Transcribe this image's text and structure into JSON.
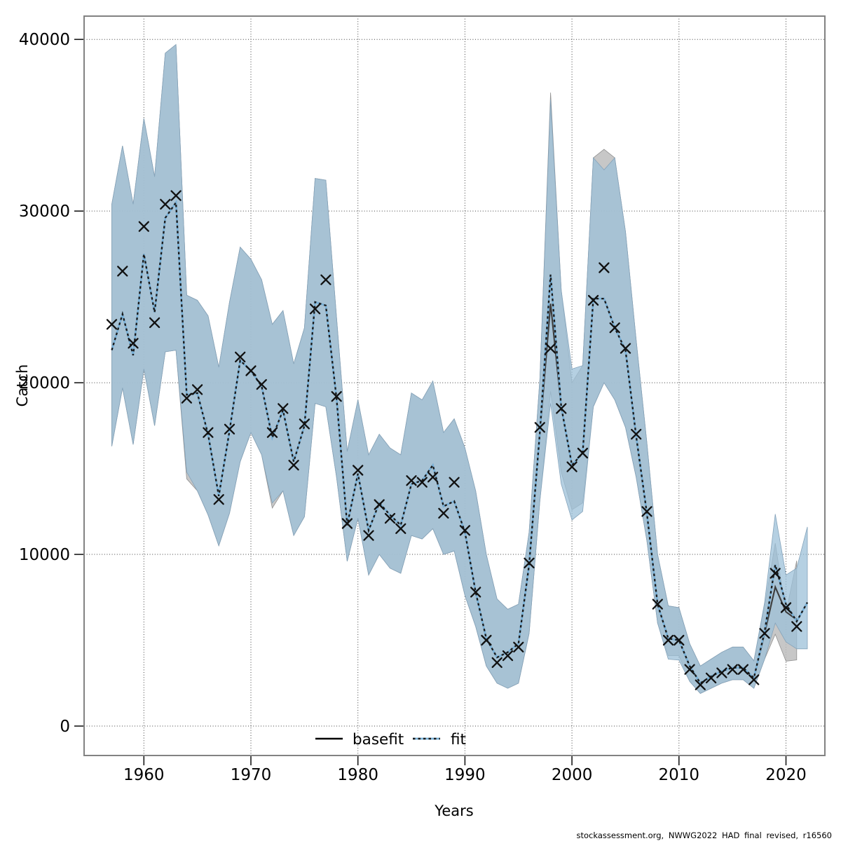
{
  "chart_data": {
    "type": "line",
    "title": "",
    "xlabel": "Years",
    "ylabel": "Catch",
    "caption": "stockassessment.org, NWWG2022 HAD final revised, r16560",
    "grid": true,
    "legend": {
      "position": "bottom-center-inside",
      "items": [
        {
          "label": "basefit",
          "style": "solid",
          "color": "#000000"
        },
        {
          "label": "fit",
          "style": "dotted",
          "color": "#79b1d8"
        }
      ]
    },
    "xlim": [
      1954.4,
      2023.6
    ],
    "ylim": [
      -1700,
      41400
    ],
    "x_ticks": [
      1960,
      1970,
      1980,
      1990,
      2000,
      2010,
      2020
    ],
    "x_tick_labels": [
      "1960",
      "1970",
      "1980",
      "1990",
      "2000",
      "2010",
      "2020"
    ],
    "y_ticks": [
      0,
      10000,
      20000,
      30000,
      40000
    ],
    "y_tick_labels": [
      "0",
      "10000",
      "20000",
      "30000",
      "40000"
    ],
    "years": [
      1957,
      1958,
      1959,
      1960,
      1961,
      1962,
      1963,
      1964,
      1965,
      1966,
      1967,
      1968,
      1969,
      1970,
      1971,
      1972,
      1973,
      1974,
      1975,
      1976,
      1977,
      1978,
      1979,
      1980,
      1981,
      1982,
      1983,
      1984,
      1985,
      1986,
      1987,
      1988,
      1989,
      1990,
      1991,
      1992,
      1993,
      1994,
      1995,
      1996,
      1997,
      1998,
      1999,
      2000,
      2001,
      2002,
      2003,
      2004,
      2005,
      2006,
      2007,
      2008,
      2009,
      2010,
      2011,
      2012,
      2013,
      2014,
      2015,
      2016,
      2017,
      2018,
      2019,
      2020,
      2021,
      2022
    ],
    "series": [
      {
        "name": "observed_catch",
        "marker": "x",
        "values": [
          23400,
          26500,
          22300,
          29100,
          23500,
          30400,
          30900,
          19100,
          19600,
          17100,
          13200,
          17300,
          21500,
          20700,
          19900,
          17100,
          18500,
          15200,
          17600,
          24300,
          26000,
          19200,
          11800,
          14900,
          11100,
          12900,
          12100,
          11500,
          14300,
          14200,
          14500,
          12400,
          14200,
          11400,
          7800,
          5000,
          3700,
          4100,
          4600,
          9500,
          17400,
          22000,
          18500,
          15100,
          15900,
          24800,
          26700,
          23200,
          22000,
          17000,
          12500,
          7100,
          5000,
          5000,
          3300,
          2400,
          2800,
          3100,
          3300,
          3300,
          2700,
          5400,
          8900,
          6900,
          5800,
          null
        ]
      },
      {
        "name": "fit",
        "line": "dotted-blue",
        "values": [
          21900,
          24000,
          21600,
          27500,
          24100,
          29600,
          30500,
          19300,
          19400,
          17000,
          13400,
          17200,
          21300,
          20700,
          19800,
          16800,
          18400,
          15400,
          17500,
          24700,
          24500,
          19100,
          11700,
          14700,
          11400,
          13000,
          12300,
          11700,
          14100,
          14300,
          15200,
          12800,
          13100,
          11300,
          7800,
          5100,
          4000,
          4300,
          4800,
          9400,
          17100,
          26300,
          18600,
          15200,
          15900,
          24900,
          24900,
          23200,
          21900,
          16900,
          12400,
          7100,
          5100,
          5000,
          3500,
          2500,
          2900,
          3200,
          3400,
          3400,
          2800,
          5500,
          9400,
          7100,
          6100,
          7200
        ]
      },
      {
        "name": "basefit",
        "line": "solid-black",
        "values": [
          21900,
          24000,
          21600,
          27500,
          24100,
          29600,
          30500,
          19300,
          19400,
          17000,
          13400,
          17200,
          21300,
          20700,
          19800,
          16800,
          18400,
          15400,
          17500,
          24700,
          24500,
          19100,
          11700,
          14700,
          11400,
          13000,
          12300,
          11700,
          14100,
          14300,
          15200,
          12800,
          13100,
          11300,
          7800,
          5100,
          4000,
          4300,
          4800,
          9400,
          17100,
          24600,
          18600,
          15200,
          15900,
          24900,
          24900,
          23200,
          21900,
          16900,
          12400,
          7100,
          5100,
          5000,
          3500,
          2500,
          2900,
          3200,
          3400,
          3400,
          2800,
          5400,
          8100,
          6650,
          6200
        ]
      }
    ],
    "bands": [
      {
        "name": "basefit_ci",
        "color": "#bdbdbd",
        "upper": [
          30400,
          33800,
          30400,
          35400,
          32000,
          39200,
          39700,
          25100,
          24800,
          23900,
          20900,
          24700,
          27900,
          27200,
          26000,
          23400,
          24200,
          21100,
          23200,
          31900,
          31800,
          23800,
          16000,
          19000,
          15800,
          17000,
          16200,
          15800,
          19400,
          19000,
          20100,
          17100,
          17900,
          16200,
          13700,
          10000,
          7400,
          6800,
          7100,
          11300,
          20200,
          36900,
          25400,
          20000,
          21000,
          33100,
          33600,
          33100,
          28800,
          22500,
          16500,
          10000,
          7000,
          6900,
          4800,
          3500,
          3900,
          4300,
          4600,
          4600,
          3800,
          7000,
          10650,
          6600,
          9630
        ],
        "lower": [
          16300,
          19700,
          16400,
          20800,
          17500,
          21800,
          21900,
          14400,
          13700,
          12300,
          10500,
          12400,
          15400,
          17100,
          15800,
          12700,
          13700,
          11100,
          12200,
          18800,
          18600,
          14500,
          9600,
          12100,
          8800,
          10000,
          9200,
          8900,
          11100,
          10900,
          11500,
          10000,
          10200,
          7600,
          5800,
          3500,
          2500,
          2200,
          2500,
          5400,
          13100,
          19500,
          14800,
          12600,
          13000,
          18600,
          20000,
          19000,
          17400,
          14500,
          10800,
          6000,
          4100,
          4100,
          2600,
          1900,
          2200,
          2500,
          2700,
          2700,
          2200,
          3900,
          5350,
          3780,
          3850
        ]
      },
      {
        "name": "fit_ci",
        "color": "#9cc0d8",
        "upper": [
          30400,
          33800,
          30400,
          35400,
          32000,
          39200,
          39700,
          25100,
          24800,
          23900,
          20900,
          24700,
          27900,
          27200,
          26000,
          23400,
          24200,
          21100,
          23200,
          31900,
          31800,
          23800,
          16000,
          19000,
          15800,
          17000,
          16200,
          15800,
          19400,
          19000,
          20100,
          17100,
          17900,
          16200,
          13700,
          10000,
          7400,
          6800,
          7100,
          11300,
          20200,
          36500,
          25400,
          20800,
          21000,
          33100,
          32400,
          33100,
          28800,
          22500,
          16500,
          10000,
          7000,
          6900,
          4800,
          3500,
          3900,
          4300,
          4600,
          4600,
          3800,
          7200,
          12350,
          8800,
          9200,
          11600
        ],
        "lower": [
          16300,
          19700,
          16400,
          20800,
          17500,
          21800,
          21900,
          14800,
          13700,
          12300,
          10500,
          12400,
          15400,
          17100,
          15800,
          13000,
          13700,
          11100,
          12200,
          18800,
          18600,
          14500,
          9600,
          12100,
          8800,
          10000,
          9200,
          8900,
          11100,
          10900,
          11500,
          10000,
          10200,
          7600,
          5800,
          3500,
          2500,
          2200,
          2500,
          5400,
          13100,
          18800,
          14100,
          12000,
          12500,
          18600,
          20000,
          19000,
          17400,
          14500,
          10800,
          6000,
          3900,
          3840,
          2600,
          1900,
          2200,
          2500,
          2700,
          2700,
          2200,
          3900,
          6000,
          4900,
          4500,
          4500
        ]
      }
    ],
    "colors": {
      "frame": "#828282",
      "grid": "#404040",
      "fit_band_fill": "#9cc0d8",
      "basefit_band_fill": "#bdbdbd",
      "fit_line_blue": "#79b1d8",
      "fit_line_dash": "#1a1a1a",
      "basefit_line": "#3d3d3d",
      "marker": "#111111"
    }
  }
}
